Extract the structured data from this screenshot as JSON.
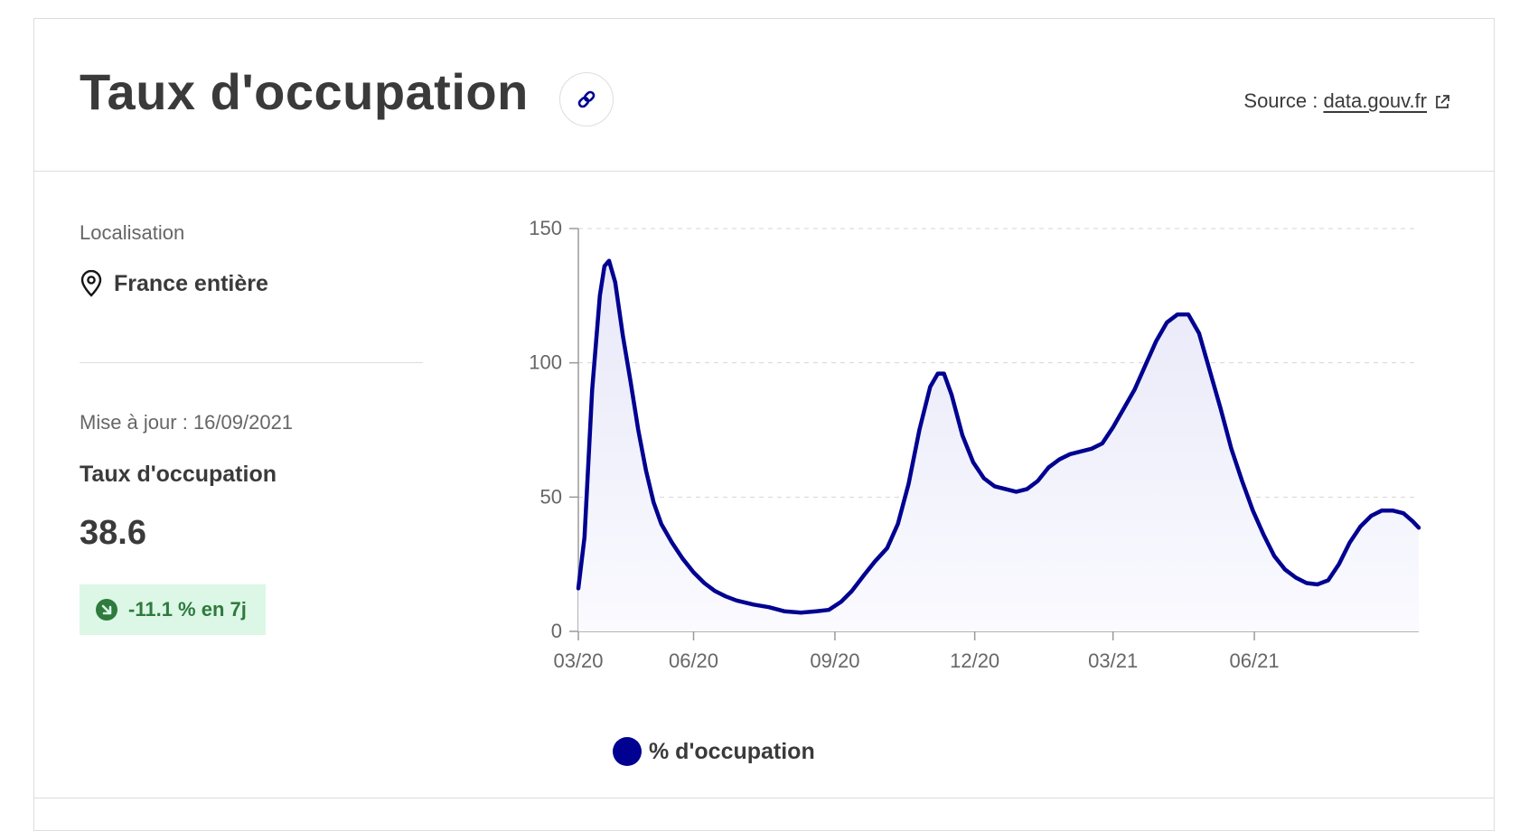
{
  "header": {
    "title": "Taux d'occupation",
    "source_prefix": "Source : ",
    "source_link": "data.gouv.fr"
  },
  "left": {
    "location_label": "Localisation",
    "location_value": "France entière",
    "updated": "Mise à jour : 16/09/2021",
    "kpi_label": "Taux d'occupation",
    "kpi_value": "38.6",
    "trend": "-11.1 % en 7j"
  },
  "colors": {
    "accent": "#000091",
    "fill": "#f1f1fb",
    "trend_bg": "#dcf7e6",
    "trend_text": "#2f7a3d"
  },
  "icons": {
    "link": "link-icon",
    "external": "external-link-icon",
    "location": "map-pin-icon",
    "trend": "arrow-down-right-icon"
  },
  "chart_data": {
    "type": "area",
    "title": "",
    "xlabel": "",
    "ylabel": "",
    "ylim": [
      0,
      150
    ],
    "yticks": [
      0,
      50,
      100,
      150
    ],
    "x_ticks": [
      "03/20",
      "06/20",
      "09/20",
      "12/20",
      "03/21",
      "06/21"
    ],
    "x_start": "2020-03-18",
    "x_end": "2021-09-16",
    "grid": true,
    "legend": "bottom-left",
    "series": [
      {
        "name": "% d'occupation",
        "color": "#000091",
        "points": [
          [
            "2020-03-18",
            16
          ],
          [
            "2020-03-22",
            35
          ],
          [
            "2020-03-27",
            90
          ],
          [
            "2020-04-01",
            125
          ],
          [
            "2020-04-04",
            136
          ],
          [
            "2020-04-07",
            138
          ],
          [
            "2020-04-11",
            130
          ],
          [
            "2020-04-16",
            110
          ],
          [
            "2020-04-21",
            93
          ],
          [
            "2020-04-26",
            75
          ],
          [
            "2020-05-01",
            60
          ],
          [
            "2020-05-06",
            48
          ],
          [
            "2020-05-11",
            40
          ],
          [
            "2020-05-18",
            33
          ],
          [
            "2020-05-25",
            27
          ],
          [
            "2020-06-01",
            22
          ],
          [
            "2020-06-08",
            18
          ],
          [
            "2020-06-15",
            15
          ],
          [
            "2020-06-22",
            13
          ],
          [
            "2020-06-29",
            11.5
          ],
          [
            "2020-07-10",
            10
          ],
          [
            "2020-07-20",
            9
          ],
          [
            "2020-07-30",
            7.5
          ],
          [
            "2020-08-10",
            7
          ],
          [
            "2020-08-20",
            7.5
          ],
          [
            "2020-08-28",
            8
          ],
          [
            "2020-09-05",
            11
          ],
          [
            "2020-09-12",
            15
          ],
          [
            "2020-09-20",
            21
          ],
          [
            "2020-09-27",
            26
          ],
          [
            "2020-10-05",
            31
          ],
          [
            "2020-10-12",
            40
          ],
          [
            "2020-10-19",
            55
          ],
          [
            "2020-10-26",
            75
          ],
          [
            "2020-11-02",
            91
          ],
          [
            "2020-11-07",
            96
          ],
          [
            "2020-11-11",
            96
          ],
          [
            "2020-11-16",
            88
          ],
          [
            "2020-11-23",
            73
          ],
          [
            "2020-11-30",
            63
          ],
          [
            "2020-12-07",
            57
          ],
          [
            "2020-12-14",
            54
          ],
          [
            "2020-12-21",
            53
          ],
          [
            "2020-12-28",
            52
          ],
          [
            "2021-01-04",
            53
          ],
          [
            "2021-01-11",
            56
          ],
          [
            "2021-01-18",
            61
          ],
          [
            "2021-01-25",
            64
          ],
          [
            "2021-02-01",
            66
          ],
          [
            "2021-02-08",
            67
          ],
          [
            "2021-02-15",
            68
          ],
          [
            "2021-02-22",
            70
          ],
          [
            "2021-03-01",
            76
          ],
          [
            "2021-03-08",
            83
          ],
          [
            "2021-03-15",
            90
          ],
          [
            "2021-03-22",
            99
          ],
          [
            "2021-03-29",
            108
          ],
          [
            "2021-04-05",
            115
          ],
          [
            "2021-04-12",
            118
          ],
          [
            "2021-04-19",
            118
          ],
          [
            "2021-04-26",
            111
          ],
          [
            "2021-05-03",
            97
          ],
          [
            "2021-05-10",
            83
          ],
          [
            "2021-05-17",
            68
          ],
          [
            "2021-05-24",
            56
          ],
          [
            "2021-05-31",
            45
          ],
          [
            "2021-06-07",
            36
          ],
          [
            "2021-06-14",
            28
          ],
          [
            "2021-06-21",
            23
          ],
          [
            "2021-06-28",
            20
          ],
          [
            "2021-07-05",
            18
          ],
          [
            "2021-07-12",
            17.5
          ],
          [
            "2021-07-19",
            19
          ],
          [
            "2021-07-26",
            25
          ],
          [
            "2021-08-02",
            33
          ],
          [
            "2021-08-09",
            39
          ],
          [
            "2021-08-16",
            43
          ],
          [
            "2021-08-23",
            45
          ],
          [
            "2021-08-30",
            45
          ],
          [
            "2021-09-06",
            44
          ],
          [
            "2021-09-12",
            41
          ],
          [
            "2021-09-16",
            38.6
          ]
        ]
      }
    ]
  }
}
